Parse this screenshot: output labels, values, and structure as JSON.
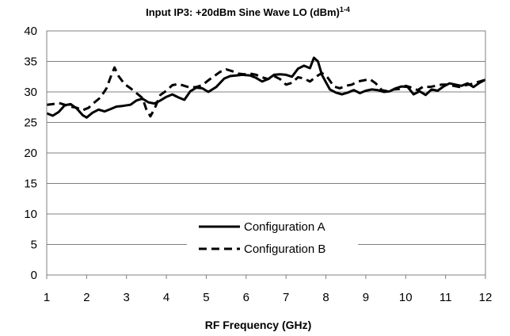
{
  "chart_data": {
    "type": "line",
    "title": "Input IP3: +20dBm Sine Wave LO (dBm)",
    "title_superscript": "1-4",
    "xlabel": "RF Frequency (GHz)",
    "ylabel": "",
    "xlim": [
      1,
      12
    ],
    "ylim": [
      0,
      40
    ],
    "xticks": [
      1,
      2,
      3,
      4,
      5,
      6,
      7,
      8,
      9,
      10,
      11,
      12
    ],
    "yticks": [
      0,
      5,
      10,
      15,
      20,
      25,
      30,
      35,
      40
    ],
    "grid": "horizontal",
    "legend_position": "bottom-center",
    "series": [
      {
        "name": "Configuration A",
        "style": "solid",
        "color": "#000000",
        "x": [
          1.0,
          1.15,
          1.3,
          1.45,
          1.6,
          1.75,
          1.9,
          2.0,
          2.15,
          2.3,
          2.45,
          2.6,
          2.75,
          2.9,
          3.1,
          3.25,
          3.4,
          3.55,
          3.7,
          3.85,
          4.0,
          4.15,
          4.3,
          4.45,
          4.6,
          4.75,
          4.9,
          5.05,
          5.25,
          5.45,
          5.6,
          5.75,
          5.9,
          6.1,
          6.25,
          6.4,
          6.55,
          6.7,
          6.85,
          7.0,
          7.15,
          7.3,
          7.45,
          7.6,
          7.7,
          7.8,
          7.9,
          8.0,
          8.1,
          8.25,
          8.4,
          8.55,
          8.7,
          8.85,
          9.0,
          9.15,
          9.3,
          9.45,
          9.6,
          9.75,
          9.9,
          10.05,
          10.2,
          10.35,
          10.5,
          10.65,
          10.8,
          10.95,
          11.1,
          11.25,
          11.4,
          11.55,
          11.7,
          11.85,
          12.0
        ],
        "y": [
          26.5,
          26.1,
          26.7,
          27.8,
          28.0,
          27.3,
          26.2,
          25.8,
          26.6,
          27.1,
          26.8,
          27.2,
          27.6,
          27.7,
          27.9,
          28.6,
          28.9,
          28.3,
          28.1,
          28.6,
          29.2,
          29.6,
          29.1,
          28.7,
          30.1,
          30.7,
          30.6,
          30.0,
          30.8,
          32.2,
          32.6,
          32.7,
          32.8,
          32.7,
          32.3,
          31.7,
          32.1,
          32.8,
          32.9,
          32.8,
          32.5,
          33.8,
          34.3,
          33.9,
          35.6,
          35.0,
          32.8,
          31.6,
          30.4,
          29.9,
          29.6,
          29.9,
          30.3,
          29.8,
          30.2,
          30.4,
          30.3,
          30.0,
          30.1,
          30.6,
          30.9,
          30.8,
          29.6,
          30.1,
          29.5,
          30.4,
          30.2,
          30.9,
          31.4,
          31.2,
          31.0,
          31.4,
          30.8,
          31.5,
          32.0
        ]
      },
      {
        "name": "Configuration B",
        "style": "dashed",
        "color": "#000000",
        "x": [
          1.0,
          1.15,
          1.3,
          1.45,
          1.6,
          1.75,
          1.9,
          2.05,
          2.2,
          2.35,
          2.5,
          2.6,
          2.7,
          2.8,
          2.95,
          3.1,
          3.25,
          3.4,
          3.5,
          3.6,
          3.7,
          3.85,
          4.0,
          4.15,
          4.3,
          4.45,
          4.6,
          4.75,
          4.9,
          5.05,
          5.2,
          5.35,
          5.5,
          5.65,
          5.8,
          5.95,
          6.1,
          6.25,
          6.4,
          6.55,
          6.7,
          6.85,
          7.0,
          7.15,
          7.3,
          7.45,
          7.6,
          7.75,
          7.9,
          8.05,
          8.2,
          8.35,
          8.5,
          8.65,
          8.8,
          8.95,
          9.1,
          9.25,
          9.4,
          9.55,
          9.7,
          9.85,
          10.0,
          10.15,
          10.3,
          10.45,
          10.6,
          10.75,
          10.9,
          11.05,
          11.2,
          11.35,
          11.5,
          11.65,
          11.8,
          12.0
        ],
        "y": [
          27.9,
          28.0,
          28.2,
          27.9,
          27.6,
          27.4,
          27.0,
          27.4,
          28.3,
          29.1,
          30.6,
          32.4,
          34.0,
          32.6,
          31.3,
          30.6,
          29.8,
          29.0,
          27.1,
          26.0,
          27.2,
          29.5,
          30.2,
          31.1,
          31.3,
          31.0,
          30.7,
          30.8,
          31.1,
          31.9,
          32.6,
          33.3,
          33.7,
          33.4,
          33.0,
          32.9,
          33.0,
          32.8,
          32.4,
          32.1,
          32.6,
          32.1,
          31.2,
          31.5,
          32.4,
          32.2,
          31.7,
          32.5,
          33.1,
          32.3,
          30.9,
          30.6,
          31.0,
          31.2,
          31.7,
          31.9,
          32.1,
          31.4,
          30.3,
          30.1,
          30.4,
          30.5,
          31.0,
          30.7,
          30.3,
          30.9,
          30.8,
          31.0,
          31.2,
          31.2,
          31.0,
          30.8,
          31.1,
          31.3,
          31.6,
          32.0
        ]
      }
    ]
  }
}
